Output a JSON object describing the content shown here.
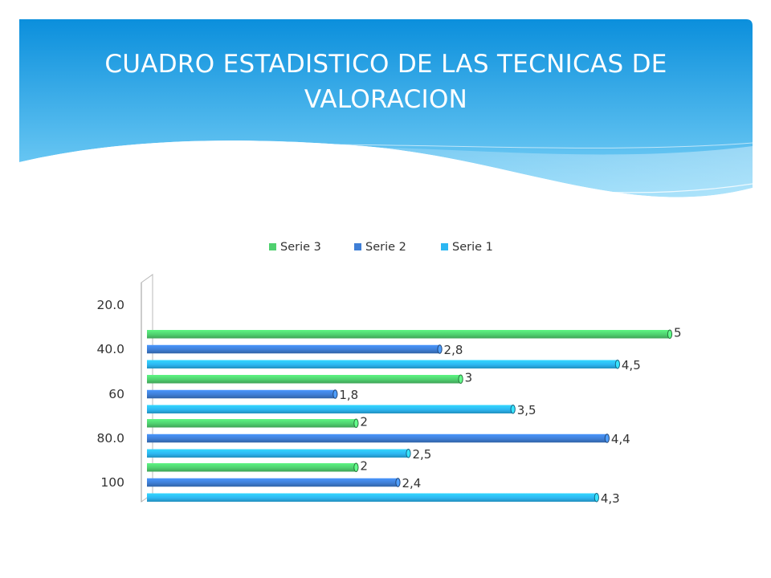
{
  "slide": {
    "title": "CUADRO ESTADISTICO DE LAS TECNICAS DE VALORACION"
  },
  "colors": {
    "header_top": "#0b8fdc",
    "header_bottom": "#6fcdf6",
    "serie3": "#4fd06f",
    "serie2": "#3f7fd6",
    "serie1": "#2cb7f2"
  },
  "chart_data": {
    "type": "bar",
    "orientation": "horizontal",
    "style": "3d",
    "categories": [
      "20.0",
      "40.0",
      "60",
      "80.0",
      "100"
    ],
    "series": [
      {
        "name": "Serie 3",
        "values": [
          null,
          5,
          3,
          2,
          2
        ],
        "labels": [
          "",
          "5",
          "3",
          "2",
          "2"
        ]
      },
      {
        "name": "Serie 2",
        "values": [
          null,
          2.8,
          1.8,
          4.4,
          2.4
        ],
        "labels": [
          "",
          "2,8",
          "1,8",
          "4,4",
          "2,4"
        ]
      },
      {
        "name": "Serie 1",
        "values": [
          null,
          4.5,
          3.5,
          2.5,
          4.3
        ],
        "labels": [
          "",
          "4,5",
          "3,5",
          "2,5",
          "4,3"
        ]
      }
    ],
    "xlim": [
      0,
      5.3
    ],
    "grid": false,
    "legend": "top-center"
  }
}
